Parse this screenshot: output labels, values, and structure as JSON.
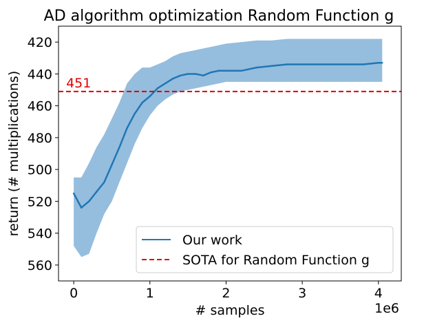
{
  "chart_data": {
    "type": "line",
    "title": "AD algorithm optimization Random Function g",
    "xlabel": "# samples",
    "ylabel": "return (# multiplications)",
    "x_offset_label": "1e6",
    "xlim": [
      -0.2,
      4.3
    ],
    "ylim": [
      570,
      410
    ],
    "y_inverted": true,
    "x_ticks": [
      0,
      1,
      2,
      3,
      4
    ],
    "x_tick_labels": [
      "0",
      "1",
      "2",
      "3",
      "4"
    ],
    "y_ticks": [
      420,
      440,
      460,
      480,
      500,
      520,
      540,
      560
    ],
    "y_tick_labels": [
      "420",
      "440",
      "460",
      "480",
      "500",
      "520",
      "540",
      "560"
    ],
    "grid": false,
    "legend_position": "lower-right",
    "series": [
      {
        "name": "Our work",
        "kind": "line-with-band",
        "color": "#1f77b4",
        "band_color": "#8fb9dc",
        "x": [
          0.0,
          0.1,
          0.2,
          0.3,
          0.4,
          0.5,
          0.6,
          0.7,
          0.8,
          0.9,
          1.0,
          1.1,
          1.2,
          1.3,
          1.4,
          1.5,
          1.6,
          1.7,
          1.8,
          1.9,
          2.0,
          2.2,
          2.4,
          2.6,
          2.8,
          3.0,
          3.2,
          3.4,
          3.6,
          3.8,
          4.0,
          4.05
        ],
        "y": [
          515,
          524,
          520,
          514,
          508,
          497,
          486,
          474,
          465,
          458,
          454,
          449,
          446,
          443,
          441,
          440,
          440,
          441,
          439,
          438,
          438,
          438,
          436,
          435,
          434,
          434,
          434,
          434,
          434,
          434,
          433,
          433
        ],
        "y_lower": [
          548,
          555,
          553,
          540,
          528,
          520,
          508,
          496,
          484,
          474,
          466,
          460,
          456,
          453,
          451,
          450,
          449,
          448,
          447,
          446,
          445,
          445,
          445,
          445,
          445,
          445,
          445,
          445,
          445,
          445,
          445,
          445
        ],
        "y_upper": [
          505,
          505,
          496,
          486,
          478,
          468,
          458,
          446,
          440,
          436,
          436,
          434,
          432,
          429,
          427,
          426,
          425,
          424,
          423,
          422,
          421,
          420,
          419,
          419,
          418,
          418,
          418,
          418,
          418,
          418,
          418,
          418
        ]
      },
      {
        "name": "SOTA for Random Function g",
        "kind": "hline",
        "color": "#e00000",
        "y": 451,
        "label": "451"
      }
    ]
  }
}
